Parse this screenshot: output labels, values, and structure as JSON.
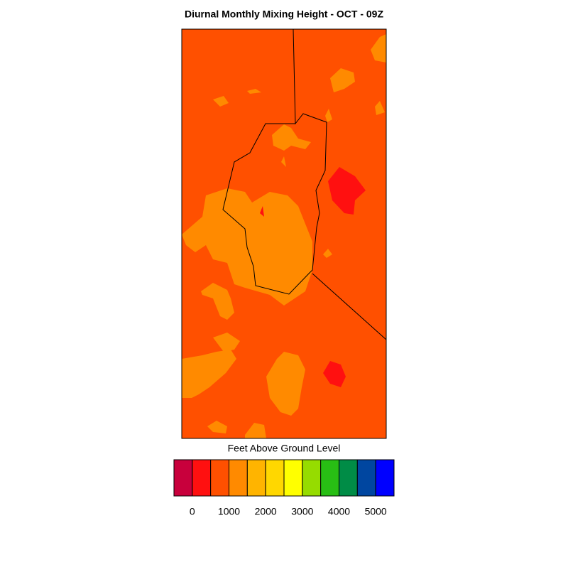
{
  "title": "Diurnal Monthly Mixing Height - OCT - 09Z",
  "colorbar": {
    "label": "Feet Above Ground Level",
    "colors": [
      "#c8003c",
      "#ff1010",
      "#ff5000",
      "#ff8a00",
      "#ffb400",
      "#ffd700",
      "#ffff00",
      "#96dc00",
      "#28be14",
      "#008c46",
      "#0046a0",
      "#0000ff"
    ],
    "ticks": [
      0,
      1000,
      2000,
      3000,
      4000,
      5000
    ]
  }
}
